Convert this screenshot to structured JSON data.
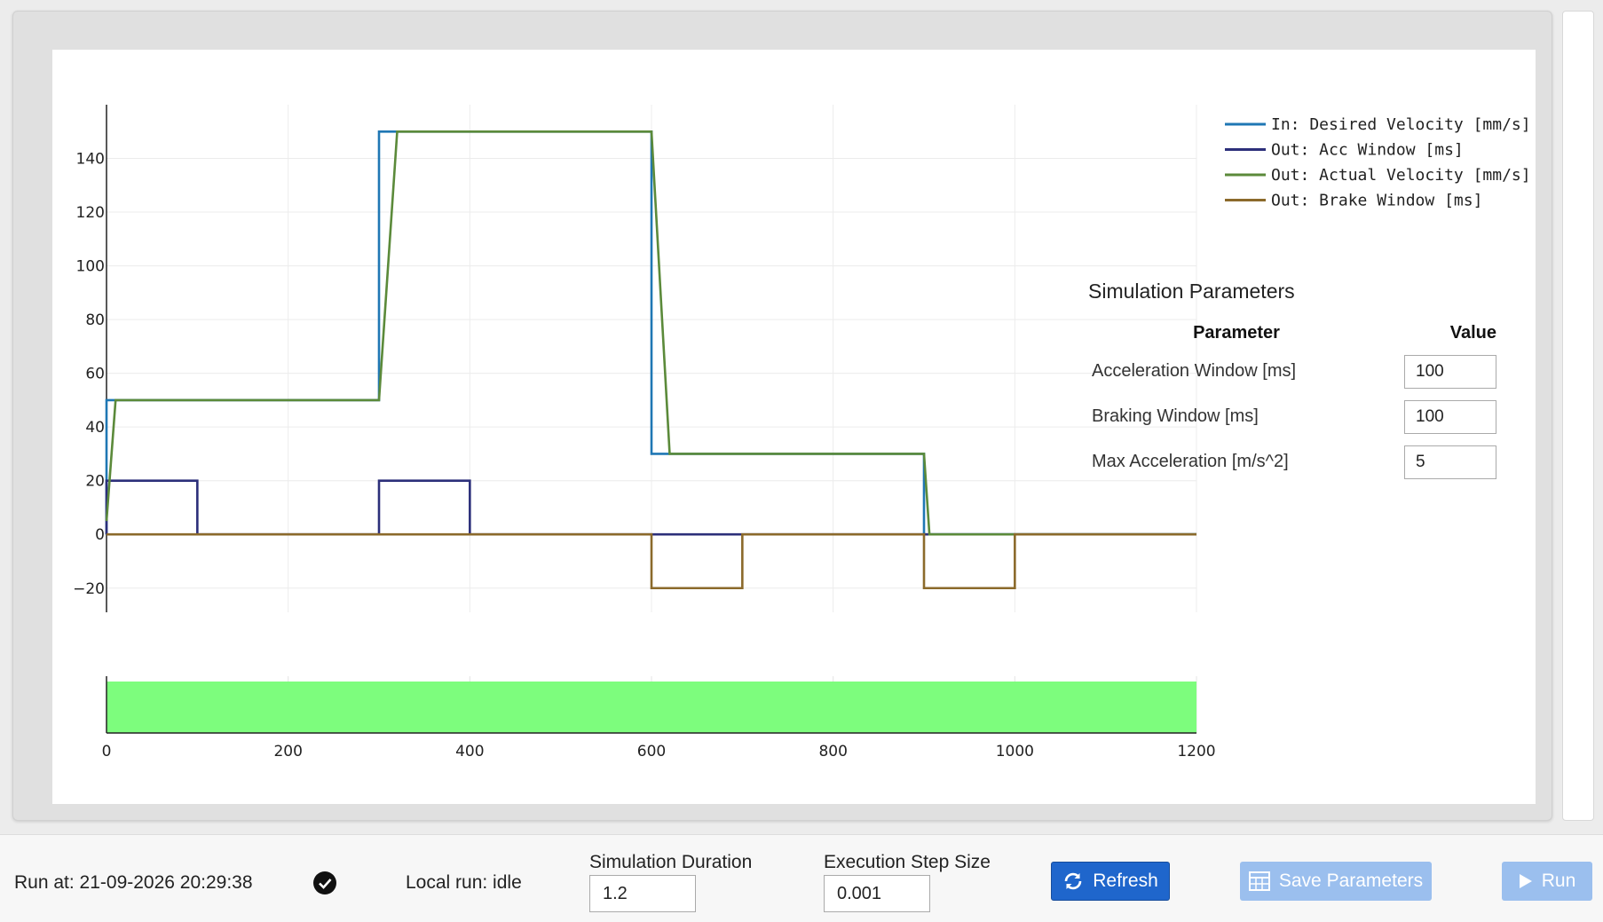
{
  "chart_data": {
    "type": "line",
    "x_ticks": [
      0,
      200,
      400,
      600,
      800,
      1000,
      1200
    ],
    "y_ticks": [
      -20,
      0,
      20,
      40,
      60,
      80,
      100,
      120,
      140
    ],
    "xlim": [
      0,
      1200
    ],
    "ylim": [
      -29,
      160
    ],
    "grid": true,
    "legend_placement": "top-right",
    "series": [
      {
        "name": "In: Desired Velocity [mm/s]",
        "color": "#1f77b4",
        "x": [
          0,
          0,
          300,
          300,
          600,
          600,
          900,
          900,
          1200
        ],
        "y": [
          0,
          50,
          50,
          150,
          150,
          30,
          30,
          0,
          0
        ]
      },
      {
        "name": "Out: Acc Window [ms]",
        "color": "#2c2f7a",
        "x": [
          0,
          0,
          100,
          100,
          300,
          300,
          400,
          400,
          1200
        ],
        "y": [
          0,
          20,
          20,
          0,
          0,
          20,
          20,
          0,
          0
        ]
      },
      {
        "name": "Out: Actual Velocity [mm/s]",
        "color": "#5b8a3a",
        "x": [
          0,
          10,
          300,
          320,
          600,
          620,
          900,
          906,
          1200
        ],
        "y": [
          5,
          50,
          50,
          150,
          150,
          30,
          30,
          0,
          0
        ]
      },
      {
        "name": "Out: Brake Window [ms]",
        "color": "#8b6a2b",
        "x": [
          0,
          600,
          600,
          700,
          700,
          900,
          900,
          1000,
          1000,
          1200
        ],
        "y": [
          0,
          0,
          -20,
          -20,
          0,
          0,
          -20,
          -20,
          0,
          0
        ]
      }
    ],
    "status_band": {
      "x": [
        0,
        1200
      ],
      "color": "#7dfd7d"
    }
  },
  "params": {
    "title": "Simulation Parameters",
    "header_param": "Parameter",
    "header_value": "Value",
    "rows": [
      {
        "label": "Acceleration Window [ms]",
        "value": "100"
      },
      {
        "label": "Braking Window [ms]",
        "value": "100"
      },
      {
        "label": "Max Acceleration [m/s^2]",
        "value": "5"
      }
    ]
  },
  "bottom": {
    "run_at": "Run at: 21-09-2026 20:29:38",
    "local_run": "Local run: idle",
    "sim_duration_label": "Simulation Duration",
    "sim_duration_value": "1.2",
    "step_size_label": "Execution Step Size",
    "step_size_value": "0.001",
    "refresh_label": "Refresh",
    "save_label": "Save Parameters",
    "run_label": "Run"
  }
}
